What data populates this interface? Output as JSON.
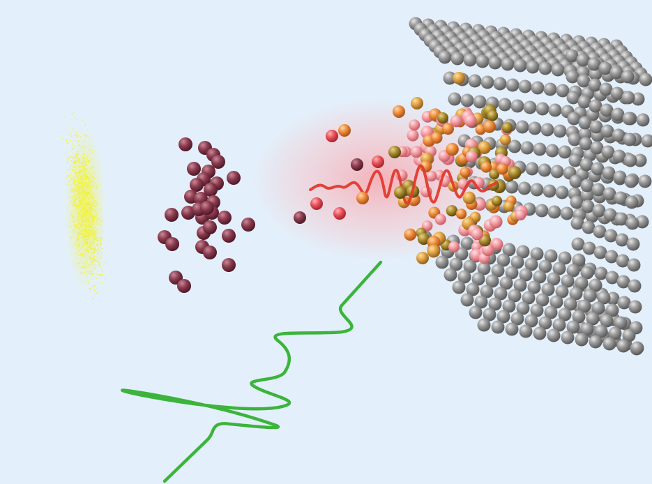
{
  "colors": {
    "background": "#e3f0fb",
    "electron_cloud": "#f2f23a",
    "ions": "#8a3a4e",
    "ejecta_red": "#e8505a",
    "ejecta_orange": "#ee8a3a",
    "laser_pulse": "#e23a2e",
    "heated_zone": "#f7b2b8",
    "excited_atoms": "#d99a3c",
    "lattice_atoms": "#8c8c8c",
    "probe_pulse": "#3cb43c"
  },
  "elements": {
    "electron_cloud": "yellow-dot-cloud",
    "ion_cluster": "dark-red-spheres",
    "ejected_particles": "red-orange-spheres",
    "laser_pulse": "red-wave",
    "heated_region": "pink-glow",
    "crystal_lattice": "gray-sphere-lattice",
    "probe_pulse": "green-wave"
  }
}
